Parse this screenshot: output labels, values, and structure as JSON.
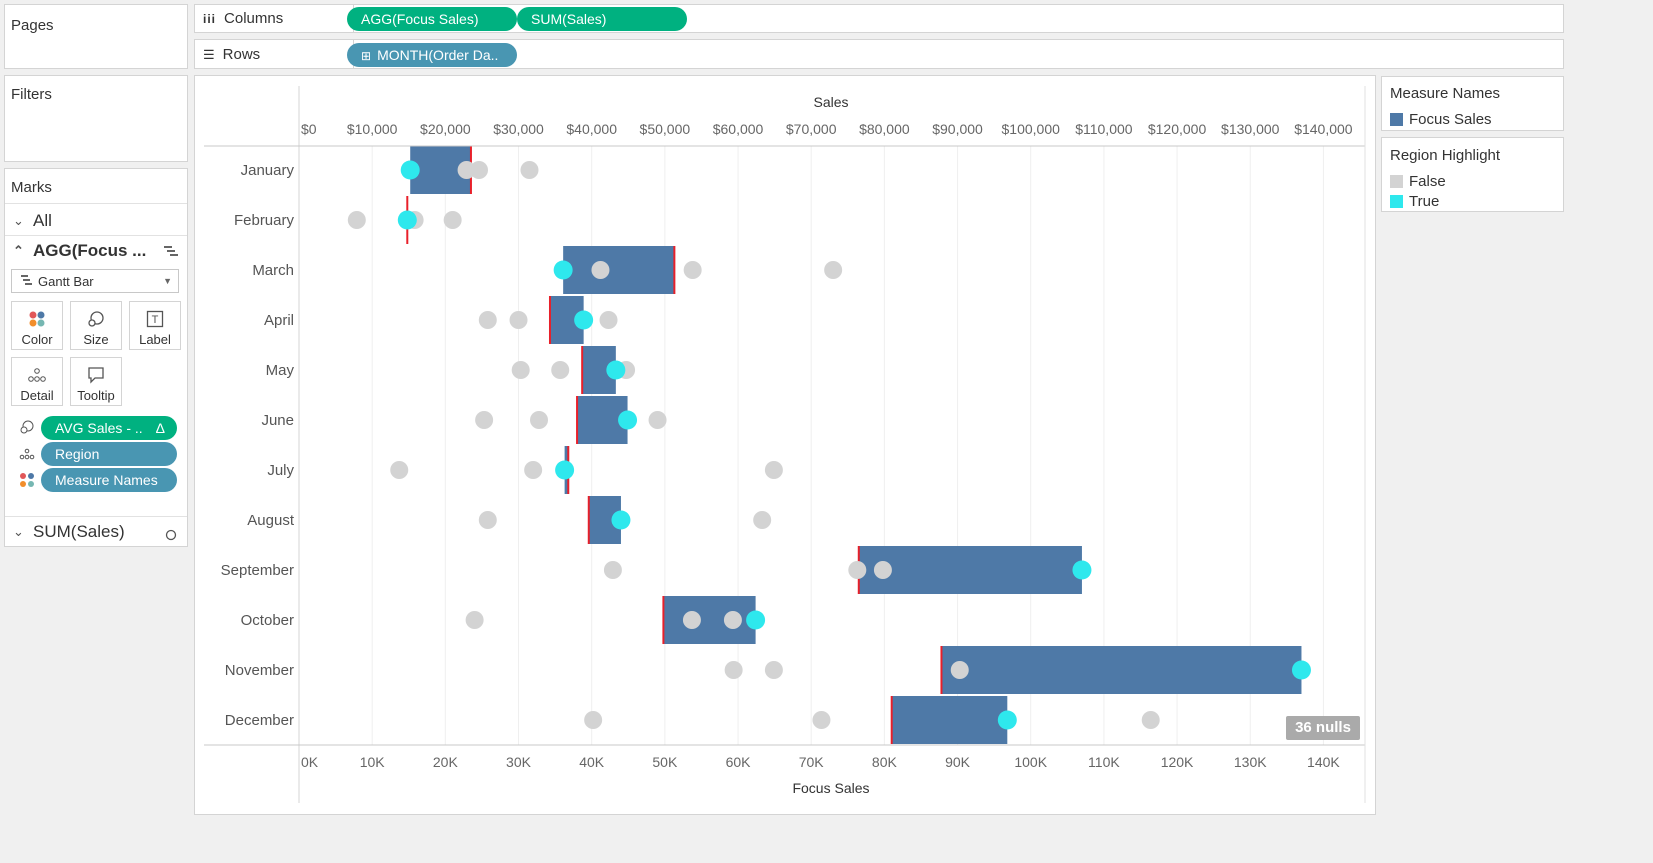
{
  "pages": {
    "title": "Pages"
  },
  "filters": {
    "title": "Filters"
  },
  "columns_shelf": {
    "label": "Columns",
    "pills": [
      "AGG(Focus Sales)",
      "SUM(Sales)"
    ]
  },
  "rows_shelf": {
    "label": "Rows",
    "pills": [
      "MONTH(Order Da.."
    ]
  },
  "marks": {
    "title": "Marks",
    "all_label": "All",
    "agg_label": "AGG(Focus ...",
    "mark_type": "Gantt Bar",
    "cards": [
      "Color",
      "Size",
      "Label",
      "Detail",
      "Tooltip"
    ],
    "encodings": [
      "AVG Sales - ..",
      "Region",
      "Measure Names"
    ],
    "sum_label": "SUM(Sales)"
  },
  "legend_measure": {
    "title": "Measure Names",
    "items": [
      {
        "label": "Focus Sales",
        "color": "#4e79a7"
      }
    ]
  },
  "legend_region": {
    "title": "Region Highlight",
    "items": [
      {
        "label": "False",
        "color": "#d3d3d3"
      },
      {
        "label": "True",
        "color": "#2ee8ed"
      }
    ]
  },
  "nulls_badge": "36 nulls",
  "chart_data": {
    "type": "gantt",
    "top_axis_title": "Sales",
    "top_ticks": [
      "$0",
      "$10,000",
      "$20,000",
      "$30,000",
      "$40,000",
      "$50,000",
      "$60,000",
      "$70,000",
      "$80,000",
      "$90,000",
      "$100,000",
      "$110,000",
      "$120,000",
      "$130,000",
      "$140,000"
    ],
    "bottom_axis_title": "Focus Sales",
    "bottom_ticks": [
      "0K",
      "10K",
      "20K",
      "30K",
      "40K",
      "50K",
      "60K",
      "70K",
      "80K",
      "90K",
      "100K",
      "110K",
      "120K",
      "130K",
      "140K"
    ],
    "xlim": [
      0,
      145000
    ],
    "categories": [
      "January",
      "February",
      "March",
      "April",
      "May",
      "June",
      "July",
      "August",
      "September",
      "October",
      "November",
      "December"
    ],
    "bars": [
      {
        "start": 23500,
        "end": 15200
      },
      {
        "start": 14800,
        "end": 14800
      },
      {
        "start": 51300,
        "end": 36100
      },
      {
        "start": 34300,
        "end": 38900
      },
      {
        "start": 38700,
        "end": 43300
      },
      {
        "start": 38000,
        "end": 44900
      },
      {
        "start": 36800,
        "end": 36300
      },
      {
        "start": 39600,
        "end": 44000
      },
      {
        "start": 76500,
        "end": 107000
      },
      {
        "start": 49800,
        "end": 62400
      },
      {
        "start": 87800,
        "end": 137000
      },
      {
        "start": 81000,
        "end": 96800
      }
    ],
    "points_false": [
      [
        22900,
        24600,
        31500
      ],
      [
        7900,
        15800,
        21000
      ],
      [
        41200,
        53800,
        73000
      ],
      [
        25800,
        30000,
        42300
      ],
      [
        30300,
        35700,
        44700
      ],
      [
        25300,
        32800,
        49000
      ],
      [
        13700,
        32000,
        64900
      ],
      [
        25800,
        63300
      ],
      [
        42900,
        76300,
        79800
      ],
      [
        24000,
        53700,
        59300
      ],
      [
        59400,
        64900,
        90300
      ],
      [
        40200,
        71400,
        116400
      ]
    ],
    "points_true": [
      15200,
      14800,
      36100,
      38900,
      43300,
      44900,
      36300,
      44000,
      107000,
      62400,
      137000,
      96800
    ]
  }
}
